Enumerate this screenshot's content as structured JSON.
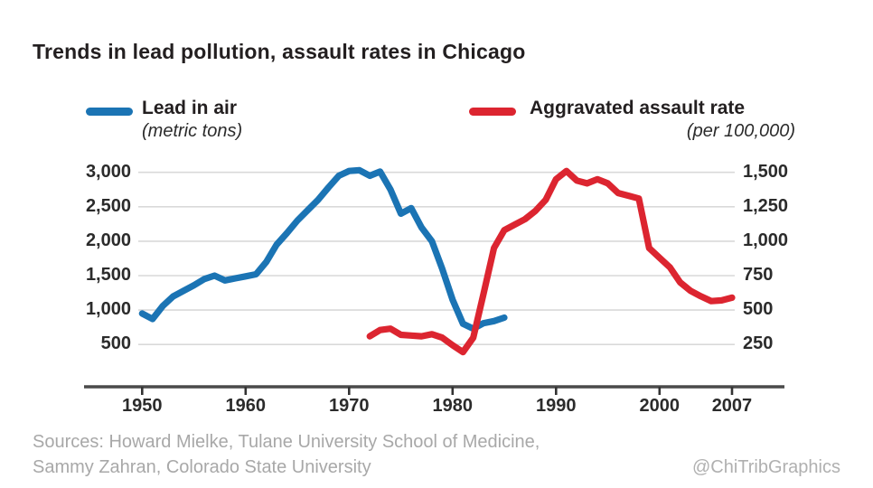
{
  "title": "Trends in lead pollution, assault rates in Chicago",
  "legend": {
    "lead": {
      "label": "Lead in air",
      "sublabel": "(metric tons)",
      "color": "#1b74b4"
    },
    "assault": {
      "label": "Aggravated assault rate",
      "sublabel": "(per 100,000)",
      "color": "#dc2530"
    }
  },
  "footer": {
    "source_line1": "Sources: Howard Mielke, Tulane University School of Medicine,",
    "source_line2": "Sammy Zahran, Colorado State University",
    "credit": "@ChiTribGraphics"
  },
  "chart_data": {
    "type": "line",
    "title": "Trends in lead pollution, assault rates in Chicago",
    "grid": true,
    "legend_position": "top",
    "left_axis": {
      "label": "Lead in air (metric tons)",
      "ticks": [
        3000,
        2500,
        2000,
        1500,
        1000,
        500
      ],
      "tick_labels": [
        "3,000",
        "2,500",
        "2,000",
        "1,500",
        "1,000",
        "500"
      ]
    },
    "right_axis": {
      "label": "Aggravated assault rate (per 100,000)",
      "ticks": [
        1500,
        1250,
        1000,
        750,
        500,
        250
      ],
      "tick_labels": [
        "1,500",
        "1,250",
        "1,000",
        "750",
        "500",
        "250"
      ]
    },
    "x_axis": {
      "ticks": [
        1950,
        1960,
        1970,
        1980,
        1990,
        2000,
        2007
      ],
      "tick_labels": [
        "1950",
        "1960",
        "1970",
        "1980",
        "1990",
        "2000",
        "2007"
      ],
      "range": [
        1950,
        2007
      ]
    },
    "series": [
      {
        "name": "Lead in air",
        "units": "metric tons",
        "axis": "left",
        "color": "#1b74b4",
        "x": [
          1950,
          1951,
          1952,
          1953,
          1954,
          1955,
          1956,
          1957,
          1958,
          1959,
          1960,
          1961,
          1962,
          1963,
          1964,
          1965,
          1966,
          1967,
          1968,
          1969,
          1970,
          1971,
          1972,
          1973,
          1974,
          1975,
          1976,
          1977,
          1978,
          1979,
          1980,
          1981,
          1982,
          1983,
          1984,
          1985
        ],
        "values": [
          950,
          870,
          1060,
          1200,
          1280,
          1360,
          1450,
          1500,
          1430,
          1460,
          1490,
          1520,
          1700,
          1950,
          2120,
          2300,
          2450,
          2600,
          2780,
          2950,
          3020,
          3030,
          2950,
          3010,
          2750,
          2400,
          2480,
          2200,
          2000,
          1600,
          1150,
          800,
          730,
          810,
          840,
          890
        ]
      },
      {
        "name": "Aggravated assault rate",
        "units": "per 100,000",
        "axis": "right",
        "color": "#dc2530",
        "x": [
          1972,
          1973,
          1974,
          1975,
          1976,
          1977,
          1978,
          1979,
          1980,
          1981,
          1982,
          1983,
          1984,
          1985,
          1986,
          1987,
          1988,
          1989,
          1990,
          1991,
          1992,
          1993,
          1994,
          1995,
          1996,
          1997,
          1998,
          1999,
          2000,
          2001,
          2002,
          2003,
          2004,
          2005,
          2006,
          2007
        ],
        "values": [
          310,
          355,
          365,
          320,
          315,
          310,
          325,
          300,
          245,
          195,
          300,
          620,
          950,
          1080,
          1120,
          1160,
          1220,
          1300,
          1450,
          1510,
          1440,
          1420,
          1450,
          1420,
          1350,
          1330,
          1310,
          950,
          880,
          810,
          700,
          640,
          600,
          565,
          570,
          590
        ]
      }
    ]
  }
}
